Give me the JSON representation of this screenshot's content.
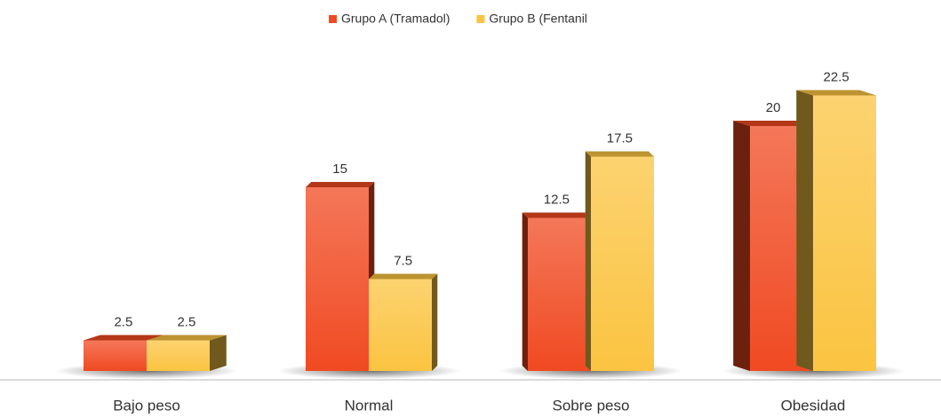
{
  "chart_data": {
    "type": "bar",
    "categories": [
      "Bajo peso",
      "Normal",
      "Sobre peso",
      "Obesidad"
    ],
    "series": [
      {
        "name": "Grupo A (Tramadol)",
        "color": "#f04a22",
        "values": [
          2.5,
          15,
          12.5,
          20
        ]
      },
      {
        "name": "Grupo B (Fentanil",
        "color": "#fbc441",
        "values": [
          2.5,
          7.5,
          17.5,
          22.5
        ]
      }
    ],
    "ylim": [
      0,
      25
    ],
    "legend": "top",
    "grid": false
  }
}
